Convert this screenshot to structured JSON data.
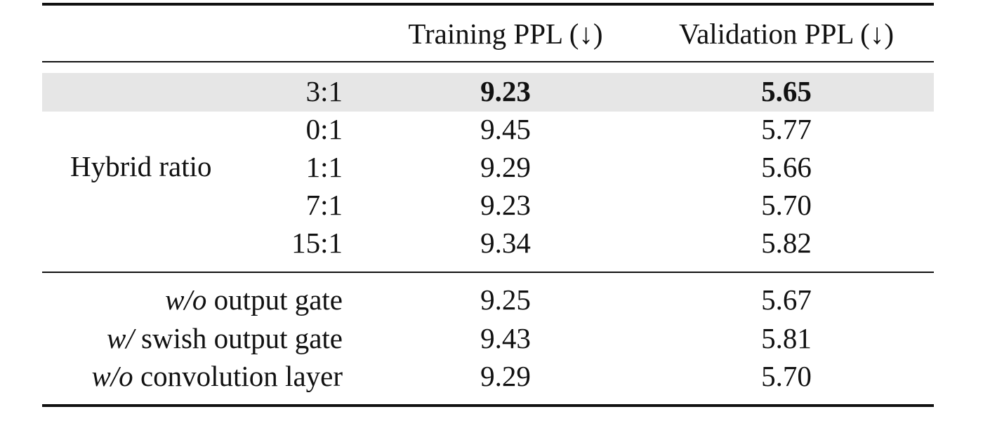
{
  "header": {
    "col1": "",
    "col2": "Training PPL (↓)",
    "col3": "Validation PPL (↓)"
  },
  "hybrid_group": {
    "label": "Hybrid ratio",
    "rows": [
      {
        "ratio": "3:1",
        "training": "9.23",
        "validation": "5.65",
        "highlighted": true,
        "bold": true
      },
      {
        "ratio": "0:1",
        "training": "9.45",
        "validation": "5.77"
      },
      {
        "ratio": "1:1",
        "training": "9.29",
        "validation": "5.66"
      },
      {
        "ratio": "7:1",
        "training": "9.23",
        "validation": "5.70"
      },
      {
        "ratio": "15:1",
        "training": "9.34",
        "validation": "5.82"
      }
    ]
  },
  "ablations": [
    {
      "prefix": "w/o",
      "rest": " output gate",
      "training": "9.25",
      "validation": "5.67"
    },
    {
      "prefix": "w/",
      "rest": " swish output gate",
      "training": "9.43",
      "validation": "5.81"
    },
    {
      "prefix": "w/o",
      "rest": " convolution layer",
      "training": "9.29",
      "validation": "5.70"
    }
  ],
  "colors": {
    "highlight_row": "#e6e6e6",
    "text": "#111111"
  }
}
